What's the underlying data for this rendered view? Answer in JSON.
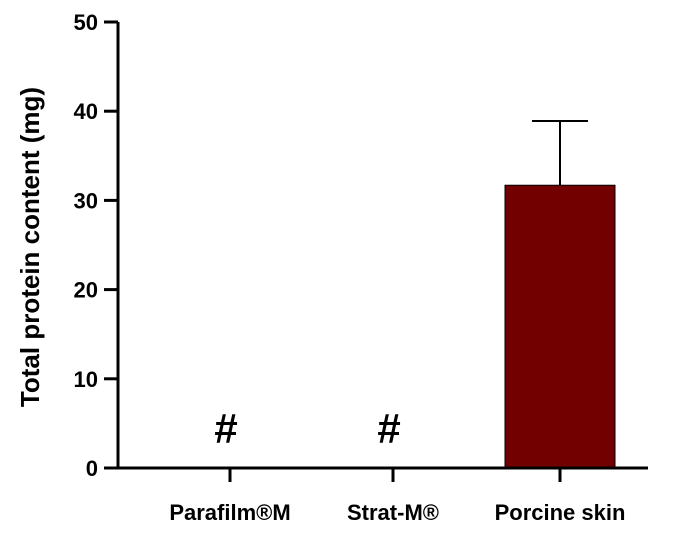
{
  "chart_data": {
    "type": "bar",
    "title": "",
    "xlabel": "",
    "ylabel": "Total protein content (mg)",
    "ylim": [
      0,
      50
    ],
    "yticks": [
      0,
      10,
      20,
      30,
      40,
      50
    ],
    "categories": [
      "Parafilm®M",
      "Strat-M®",
      "Porcine skin"
    ],
    "values": [
      0,
      0,
      31.7
    ],
    "errors": [
      null,
      null,
      7.2
    ],
    "annotations": [
      "#",
      "#",
      ""
    ],
    "bar_color": "#730000",
    "grid": false
  }
}
